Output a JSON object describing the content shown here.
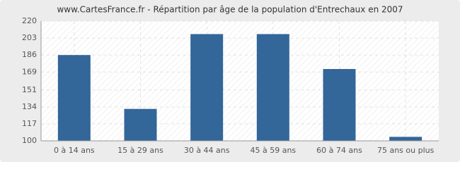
{
  "chart_data": {
    "type": "bar",
    "title": "www.CartesFrance.fr - Répartition par âge de la population d'Entrechaux en 2007",
    "categories": [
      "0 à 14 ans",
      "15 à 29 ans",
      "30 à 44 ans",
      "45 à 59 ans",
      "60 à 74 ans",
      "75 ans ou plus"
    ],
    "values": [
      186,
      132,
      207,
      207,
      172,
      104
    ],
    "color": "#336699",
    "ylim": [
      100,
      220
    ],
    "yticks": [
      100,
      117,
      134,
      151,
      169,
      186,
      203,
      220
    ],
    "grid": true
  }
}
